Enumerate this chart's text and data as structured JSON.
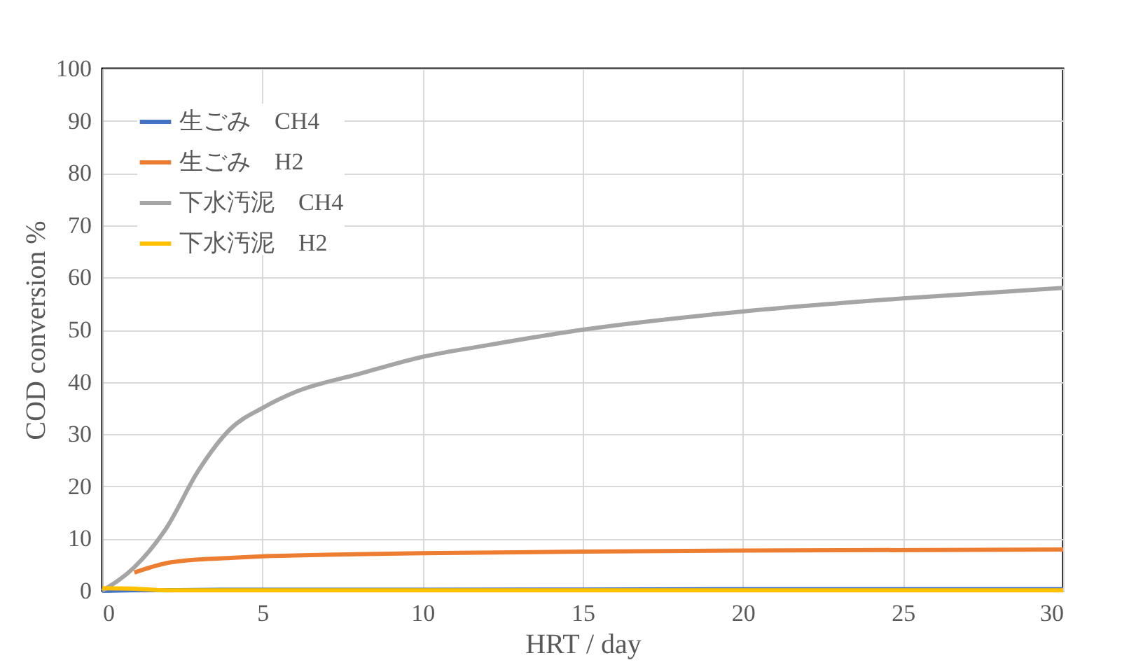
{
  "chart_data": {
    "type": "line",
    "xlabel": "HRT / day",
    "ylabel": "COD conversion %",
    "xlim": [
      0,
      30
    ],
    "xticks": [
      0,
      5,
      10,
      15,
      20,
      25,
      30
    ],
    "ylim": [
      0,
      100
    ],
    "yticks": [
      0,
      10,
      20,
      30,
      40,
      50,
      60,
      70,
      80,
      90,
      100
    ],
    "grid": true,
    "legend": "top left",
    "marker": "none",
    "line_style": "solid",
    "series": [
      {
        "name": "生ごみ　CH4",
        "color": "#4472c4",
        "x": [
          0,
          1,
          5,
          10,
          20,
          30
        ],
        "values": [
          0,
          0.1,
          0.2,
          0.2,
          0.3,
          0.3
        ]
      },
      {
        "name": "生ごみ　H2",
        "color": "#ed7d31",
        "x": [
          1,
          2,
          3,
          4,
          5,
          7,
          10,
          15,
          20,
          30
        ],
        "values": [
          3.5,
          5.3,
          6,
          6.3,
          6.6,
          6.9,
          7.2,
          7.5,
          7.7,
          7.9
        ]
      },
      {
        "name": "下水汚泥　CH4",
        "color": "#a5a5a5",
        "x": [
          0,
          1,
          2,
          3,
          4,
          5,
          6,
          8,
          10,
          12,
          15,
          20,
          25,
          30
        ],
        "values": [
          0,
          4.5,
          12,
          23,
          31,
          35,
          38,
          41.5,
          44.8,
          47,
          50,
          53.5,
          56,
          58
        ]
      },
      {
        "name": "下水汚泥　H2",
        "color": "#ffc000",
        "x": [
          0,
          1,
          2,
          5,
          10,
          20,
          30
        ],
        "values": [
          0.5,
          0.4,
          0.1,
          0.1,
          0.1,
          0.1,
          0.1
        ]
      }
    ]
  }
}
